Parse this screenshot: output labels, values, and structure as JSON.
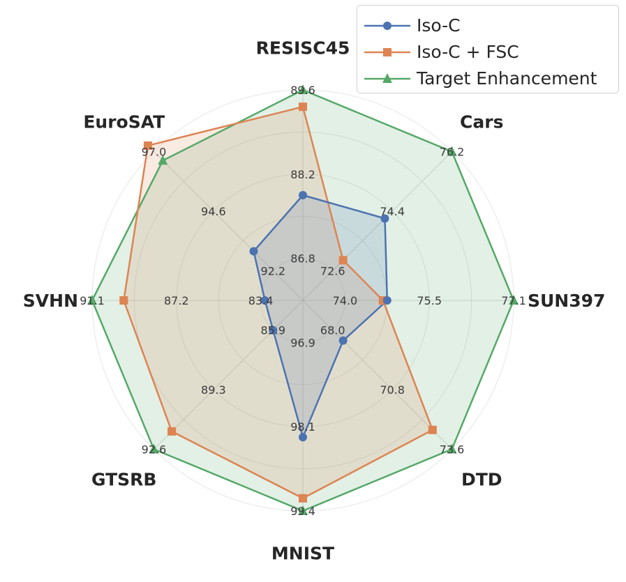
{
  "chart_data": {
    "type": "radar",
    "categories": [
      "RESISC45",
      "Cars",
      "SUN397",
      "DTD",
      "MNIST",
      "GTSRB",
      "SVHN",
      "EuroSAT"
    ],
    "tick_labels": [
      [
        "86.8",
        "88.2",
        "89.6"
      ],
      [
        "72.6",
        "74.4",
        "76.2"
      ],
      [
        "74.0",
        "75.5",
        "77.1"
      ],
      [
        "68.0",
        "70.8",
        "73.6"
      ],
      [
        "96.9",
        "98.1",
        "99.4"
      ],
      [
        "85.9",
        "89.3",
        "92.6"
      ],
      [
        "83.4",
        "87.2",
        "91.1"
      ],
      [
        "92.2",
        "94.6",
        "97.0"
      ]
    ],
    "normalized_scale": {
      "min": 0.2,
      "max": 1.0,
      "grid": [
        0.2,
        0.4,
        0.6,
        0.8,
        1.0
      ]
    },
    "series": [
      {
        "name": "Iso-C",
        "color": "#4C72B0",
        "marker": "circle",
        "values": [
          0.5,
          0.55,
          0.4,
          0.27,
          0.65,
          0.2,
          0.18,
          0.33
        ]
      },
      {
        "name": "Iso-C + FSC",
        "color": "#DD8452",
        "marker": "square",
        "values": [
          0.92,
          0.27,
          0.38,
          0.87,
          0.94,
          0.88,
          0.85,
          1.04
        ]
      },
      {
        "name": "Target Enhancement",
        "color": "#55A868",
        "marker": "triangle",
        "values": [
          1.0,
          1.0,
          1.0,
          1.0,
          1.0,
          1.0,
          1.0,
          0.94
        ]
      }
    ],
    "legend_position": "top-right",
    "grid": true
  }
}
